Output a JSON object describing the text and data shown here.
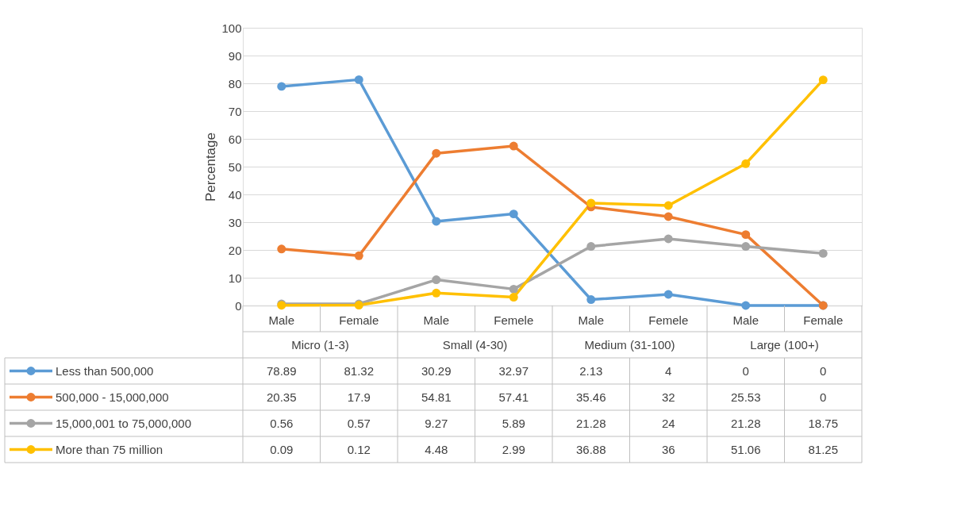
{
  "chart_data": {
    "type": "line",
    "ylabel": "Percentage",
    "categories": [
      "Male",
      "Female",
      "Male",
      "Femele",
      "Male",
      "Femele",
      "Male",
      "Female"
    ],
    "annotations": [
      "Micro (1-3)",
      "Small (4-30)",
      "Medium (31-100)",
      "Large (100+)"
    ],
    "series": [
      {
        "name": "Less than 500,000",
        "color": "#5b9bd5",
        "values": [
          78.89,
          81.32,
          30.29,
          32.97,
          2.13,
          4,
          0,
          0
        ]
      },
      {
        "name": "500,000 - 15,000,000",
        "color": "#ed7d31",
        "values": [
          20.35,
          17.9,
          54.81,
          57.41,
          35.46,
          32,
          25.53,
          0
        ]
      },
      {
        "name": "15,000,001 to 75,000,000",
        "color": "#a5a5a5",
        "values": [
          0.56,
          0.57,
          9.27,
          5.89,
          21.28,
          24,
          21.28,
          18.75
        ]
      },
      {
        "name": "More than 75 million",
        "color": "#ffc000",
        "values": [
          0.09,
          0.12,
          4.48,
          2.99,
          36.88,
          36,
          51.06,
          81.25
        ]
      }
    ],
    "ylim": [
      0,
      100
    ],
    "yticks": [
      0,
      10,
      20,
      30,
      40,
      50,
      60,
      70,
      80,
      90,
      100
    ],
    "grid": "y",
    "legend": "bottom",
    "marker": "circle",
    "line_style": "solid",
    "data_labels": true
  }
}
